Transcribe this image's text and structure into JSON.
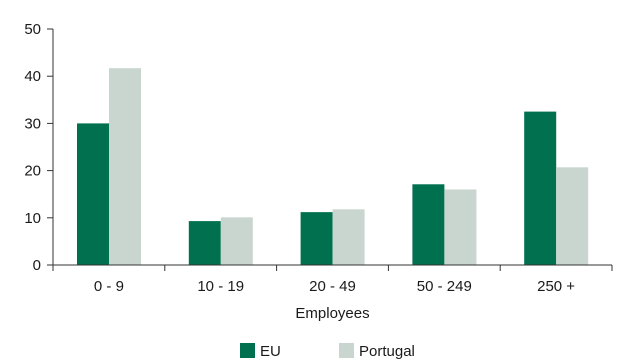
{
  "chart_data": {
    "type": "bar",
    "categories": [
      "0 - 9",
      "10 - 19",
      "20 - 49",
      "50 - 249",
      "250 +"
    ],
    "series": [
      {
        "name": "EU",
        "values": [
          30,
          9.3,
          11.2,
          17.1,
          32.5
        ],
        "color": "#00704f"
      },
      {
        "name": "Portugal",
        "values": [
          41.7,
          10.1,
          11.8,
          16,
          20.7
        ],
        "color": "#c9d6d0"
      }
    ],
    "title": "",
    "xlabel": "Employees",
    "ylabel": "",
    "ylim": [
      0,
      50
    ],
    "yticks": [
      0,
      10,
      20,
      30,
      40,
      50
    ],
    "grid": false,
    "legend_position": "bottom"
  }
}
